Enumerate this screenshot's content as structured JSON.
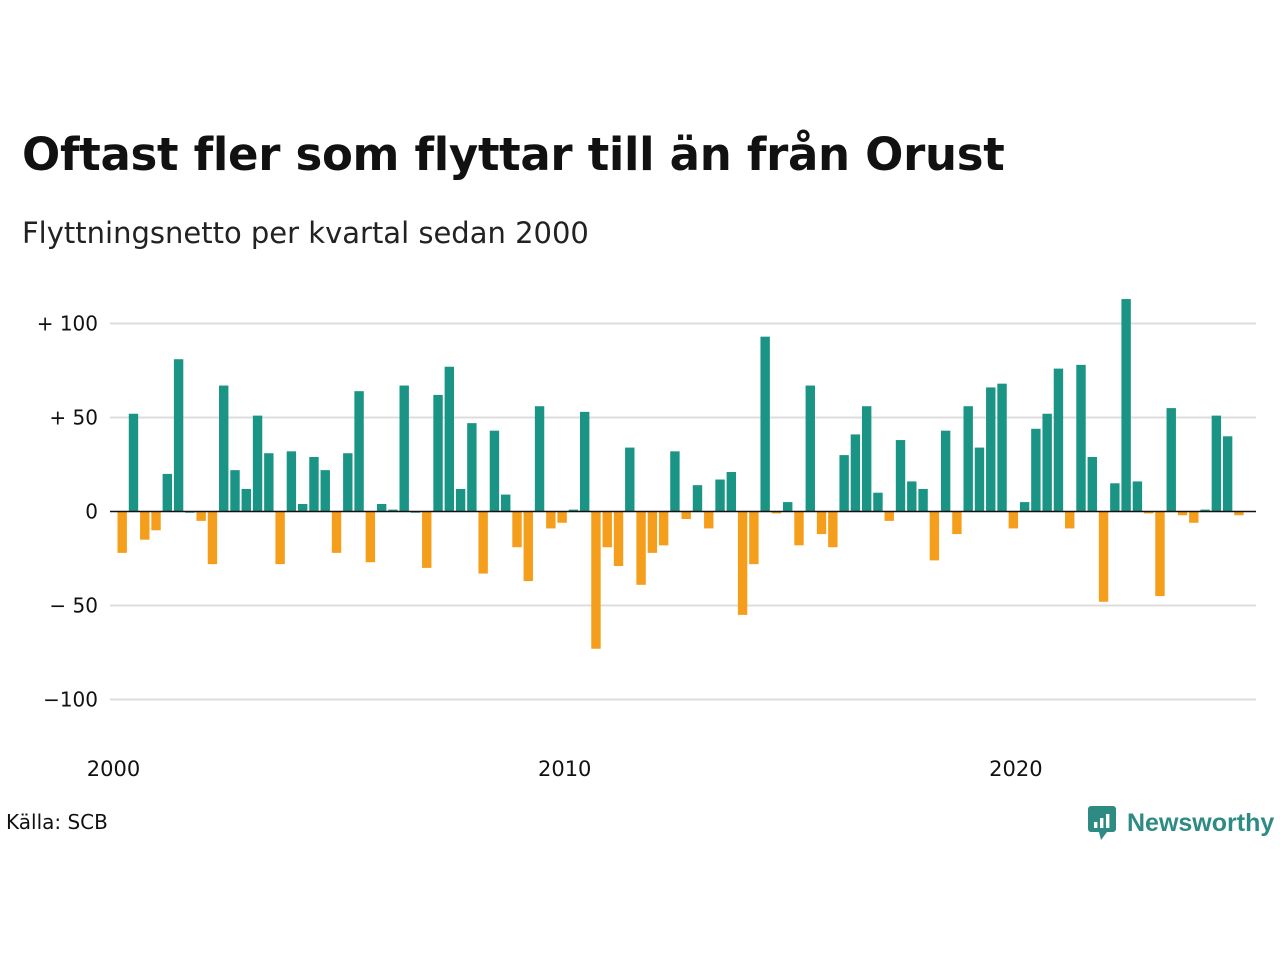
{
  "title": "Oftast fler som flyttar till än från Orust",
  "subtitle": "Flyttningsnetto per kvartal sedan 2000",
  "source": "Källa: SCB",
  "logo_text": "Newsworthy",
  "colors": {
    "positive": "#1a9485",
    "negative": "#f59e1c",
    "grid": "#dddddd",
    "zero": "#111111",
    "brand": "#2e8b83"
  },
  "chart_data": {
    "type": "bar",
    "title": "Oftast fler som flyttar till än från Orust",
    "subtitle": "Flyttningsnetto per kvartal sedan 2000",
    "start": "2000-Q1",
    "frequency": "quarterly",
    "ylim": [
      -110,
      113
    ],
    "yticks": [
      {
        "value": 100,
        "label": "+ 100"
      },
      {
        "value": 50,
        "label": "+  50"
      },
      {
        "value": 0,
        "label": "0"
      },
      {
        "value": -50,
        "label": "− 50"
      },
      {
        "value": -100,
        "label": "−100"
      }
    ],
    "xticks": [
      {
        "year": 2000,
        "label": "2000"
      },
      {
        "year": 2010,
        "label": "2010"
      },
      {
        "year": 2020,
        "label": "2020"
      }
    ],
    "grid": true,
    "values": [
      -22,
      52,
      -15,
      -10,
      20,
      81,
      0,
      -5,
      -28,
      67,
      22,
      12,
      51,
      31,
      -28,
      32,
      4,
      29,
      22,
      -22,
      31,
      64,
      -27,
      4,
      1,
      67,
      0,
      -30,
      62,
      77,
      12,
      47,
      -33,
      43,
      9,
      -19,
      -37,
      56,
      -9,
      -6,
      1,
      53,
      -73,
      -19,
      -29,
      34,
      -39,
      -22,
      -18,
      32,
      -4,
      14,
      -9,
      17,
      21,
      -55,
      -28,
      93,
      -1,
      5,
      -18,
      67,
      -12,
      -19,
      30,
      41,
      56,
      10,
      -5,
      38,
      16,
      12,
      -26,
      43,
      -12,
      56,
      34,
      66,
      68,
      -9,
      5,
      44,
      52,
      76,
      -9,
      78,
      29,
      -48,
      15,
      113,
      16,
      -1,
      -45,
      55,
      -2,
      -6,
      1,
      51,
      40,
      -2
    ]
  }
}
